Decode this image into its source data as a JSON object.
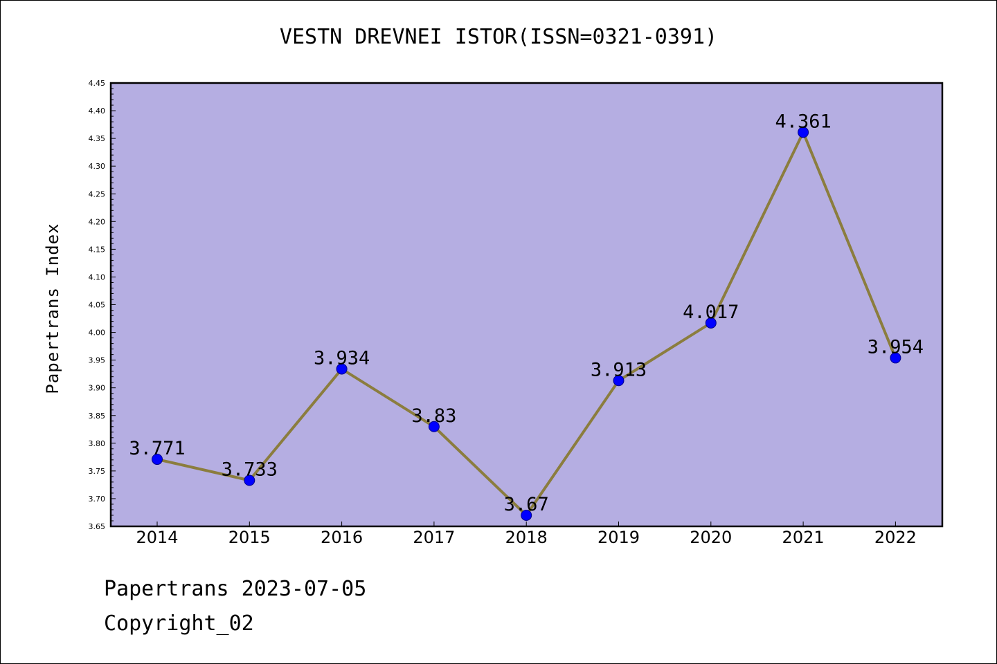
{
  "chart_data": {
    "type": "line",
    "title": "VESTN DREVNEI ISTOR(ISSN=0321-0391)",
    "xlabel": "",
    "ylabel": "Papertrans Index",
    "categories": [
      "2014",
      "2015",
      "2016",
      "2017",
      "2018",
      "2019",
      "2020",
      "2021",
      "2022"
    ],
    "series": [
      {
        "values": [
          3.771,
          3.733,
          3.934,
          3.83,
          3.67,
          3.913,
          4.017,
          4.361,
          3.954
        ],
        "labels": [
          "3.771",
          "3.733",
          "3.934",
          "3.83",
          "3.67",
          "3.913",
          "4.017",
          "4.361",
          "3.954"
        ]
      }
    ],
    "ylim": [
      3.65,
      4.45
    ],
    "yticks": [
      "3.65",
      "3.70",
      "3.75",
      "3.80",
      "3.85",
      "3.90",
      "3.95",
      "4.00",
      "4.05",
      "4.10",
      "4.15",
      "4.20",
      "4.25",
      "4.30",
      "4.35",
      "4.40",
      "4.45"
    ],
    "grid": false,
    "legend": "none",
    "colors": {
      "plot_background": "#b5aee2",
      "line": "#8b7d3e",
      "marker": "#0000ff",
      "marker_edge": "#00008b"
    }
  },
  "footer": {
    "line1": "Papertrans 2023-07-05",
    "line2": "Copyright_02"
  }
}
